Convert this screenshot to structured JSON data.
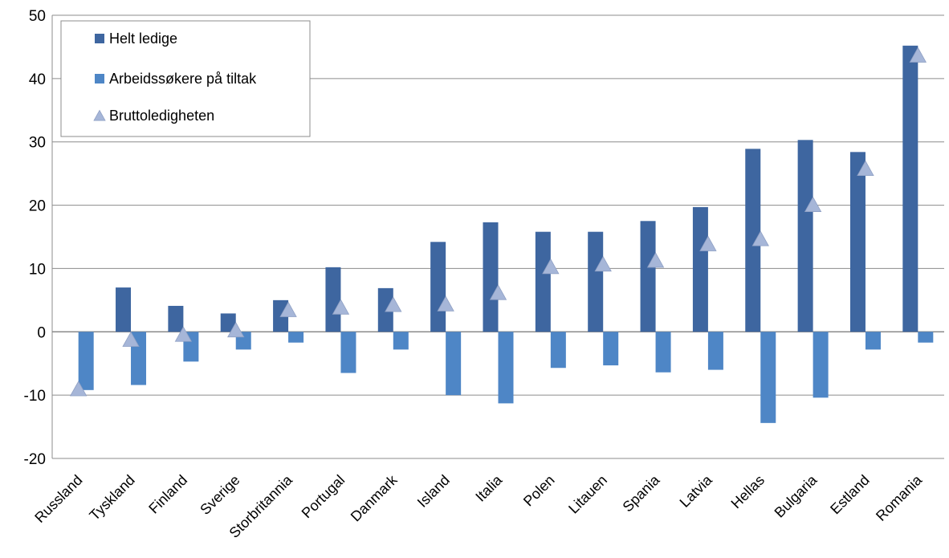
{
  "chart_data": {
    "type": "bar",
    "title": "",
    "xlabel": "",
    "ylabel": "",
    "ylim": [
      -20,
      50
    ],
    "yticks": [
      -20,
      -10,
      0,
      10,
      20,
      30,
      40,
      50
    ],
    "grid": true,
    "legend_position": "top-left",
    "categories": [
      "Russland",
      "Tyskland",
      "Finland",
      "Sverige",
      "Storbritannia",
      "Portugal",
      "Danmark",
      "Island",
      "Italia",
      "Polen",
      "Litauen",
      "Spania",
      "Latvia",
      "Hellas",
      "Bulgaria",
      "Estland",
      "Romania"
    ],
    "series": [
      {
        "name": "Helt ledige",
        "kind": "bar",
        "color": "#3E66A0",
        "values": [
          0,
          7.0,
          4.1,
          2.9,
          5.0,
          10.2,
          6.9,
          14.2,
          17.3,
          15.8,
          15.8,
          17.5,
          19.7,
          28.9,
          30.3,
          28.4,
          45.2
        ]
      },
      {
        "name": "Arbeidssøkere på tiltak",
        "kind": "bar",
        "color": "#4E86C6",
        "values": [
          -9.2,
          -8.4,
          -4.7,
          -2.8,
          -1.7,
          -6.5,
          -2.8,
          -10.0,
          -11.3,
          -5.7,
          -5.3,
          -6.4,
          -6.0,
          -14.4,
          -10.4,
          -2.8,
          -1.7
        ]
      },
      {
        "name": "Bruttoledigheten",
        "kind": "marker",
        "marker": "triangle",
        "color": "#A6B6D8",
        "values": [
          -9.2,
          -1.4,
          -0.6,
          0.1,
          3.3,
          3.7,
          4.1,
          4.2,
          6.0,
          10.1,
          10.5,
          11.1,
          13.7,
          14.5,
          19.9,
          25.6,
          43.5
        ]
      }
    ]
  }
}
